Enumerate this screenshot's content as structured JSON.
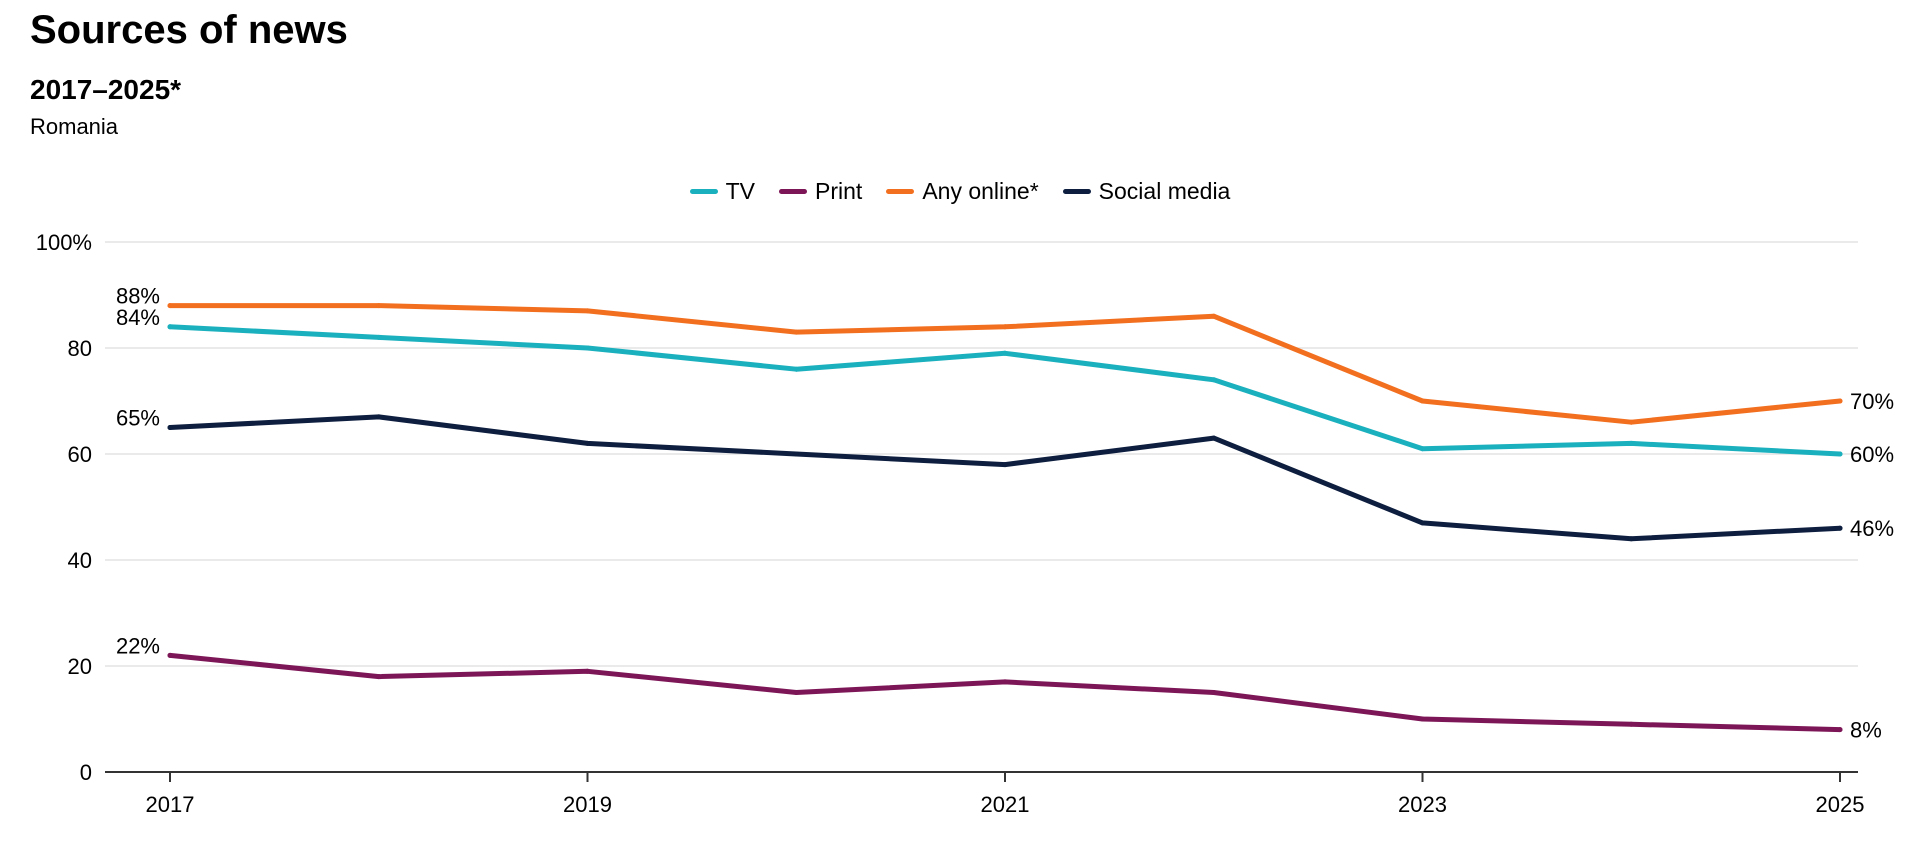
{
  "chart_data": {
    "type": "line",
    "title": "Sources of news",
    "subtitle": "2017–2025*",
    "region": "Romania",
    "xlabel": "",
    "ylabel": "",
    "x": [
      2017,
      2018,
      2019,
      2020,
      2021,
      2022,
      2023,
      2024,
      2025
    ],
    "x_tick_labels": [
      "2017",
      "2019",
      "2021",
      "2023",
      "2025"
    ],
    "x_tick_values": [
      2017,
      2019,
      2021,
      2023,
      2025
    ],
    "y_tick_labels": [
      "100%",
      "80",
      "60",
      "40",
      "20",
      "0"
    ],
    "y_tick_values": [
      100,
      80,
      60,
      40,
      20,
      0
    ],
    "ylim": [
      0,
      100
    ],
    "grid": true,
    "legend_position": "top-center",
    "series": [
      {
        "name": "TV",
        "color": "#1bb0bd",
        "values": [
          84,
          82,
          80,
          76,
          79,
          74,
          61,
          62,
          60
        ],
        "start_label": "84%",
        "end_label": "60%"
      },
      {
        "name": "Print",
        "color": "#7d1656",
        "values": [
          22,
          18,
          19,
          15,
          17,
          15,
          10,
          9,
          8
        ],
        "start_label": "22%",
        "end_label": "8%"
      },
      {
        "name": "Any online*",
        "color": "#f26f1f",
        "values": [
          88,
          88,
          87,
          83,
          84,
          86,
          70,
          66,
          70
        ],
        "start_label": "88%",
        "end_label": "70%"
      },
      {
        "name": "Social media",
        "color": "#0d1e3f",
        "values": [
          65,
          67,
          62,
          60,
          58,
          63,
          47,
          44,
          46
        ],
        "start_label": "65%",
        "end_label": "46%"
      }
    ]
  }
}
